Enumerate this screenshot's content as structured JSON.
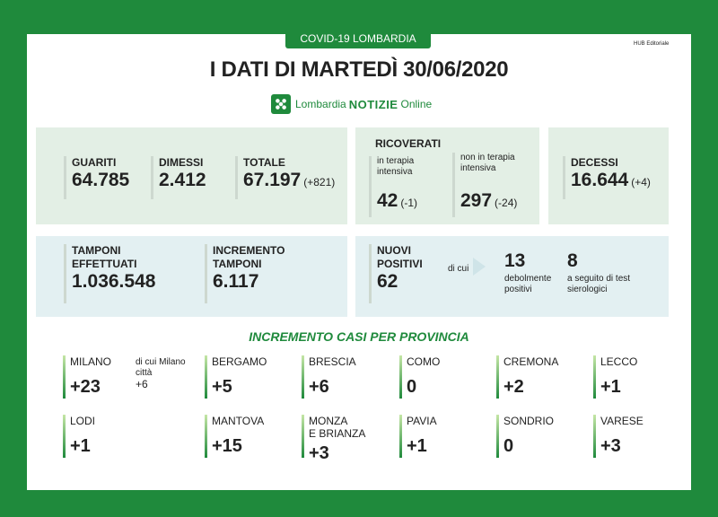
{
  "header": {
    "ribbon": "COVID-19 LOMBARDIA",
    "hub": "HUB Editoriale",
    "title": "I DATI DI MARTEDÌ 30/06/2020",
    "logo": {
      "part1": "Lombardia",
      "part2": "NOTIZIE",
      "part3": "Online",
      "icon": "lombardia-rose-icon"
    }
  },
  "top": {
    "guariti": {
      "label": "GUARITI",
      "value": "64.785"
    },
    "dimessi": {
      "label": "DIMESSI",
      "value": "2.412"
    },
    "totale": {
      "label": "TOTALE",
      "value": "67.197",
      "delta": "(+821)"
    },
    "ricoverati": {
      "label": "RICOVERATI",
      "terapia": {
        "label": "in terapia intensiva",
        "value": "42",
        "delta": "(-1)"
      },
      "non_terapia": {
        "label": "non in terapia intensiva",
        "value": "297",
        "delta": "(-24)"
      }
    },
    "decessi": {
      "label": "DECESSI",
      "value": "16.644",
      "delta": "(+4)"
    }
  },
  "middle": {
    "tamponi": {
      "label_1": "TAMPONI",
      "label_2": "EFFETTUATI",
      "value": "1.036.548"
    },
    "incremento": {
      "label_1": "INCREMENTO",
      "label_2": "TAMPONI",
      "value": "6.117"
    },
    "nuovi": {
      "label_1": "NUOVI",
      "label_2": "POSITIVI",
      "value": "62",
      "di_cui": "di cui"
    },
    "deboli": {
      "value": "13",
      "label": "debolmente positivi"
    },
    "sierologici": {
      "value": "8",
      "label": "a seguito di test sierologici"
    }
  },
  "provinces": {
    "title": "INCREMENTO CASI PER PROVINCIA",
    "milano": {
      "name": "MILANO",
      "value": "+23",
      "sub_label": "di cui Milano città",
      "sub_value": "+6"
    },
    "bergamo": {
      "name": "BERGAMO",
      "value": "+5"
    },
    "brescia": {
      "name": "BRESCIA",
      "value": "+6"
    },
    "como": {
      "name": "COMO",
      "value": "0"
    },
    "cremona": {
      "name": "CREMONA",
      "value": "+2"
    },
    "lecco": {
      "name": "LECCO",
      "value": "+1"
    },
    "lodi": {
      "name": "LODI",
      "value": "+1"
    },
    "mantova": {
      "name": "MANTOVA",
      "value": "+15"
    },
    "monza": {
      "name_1": "MONZA",
      "name_2": "E BRIANZA",
      "value": "+3"
    },
    "pavia": {
      "name": "PAVIA",
      "value": "+1"
    },
    "sondrio": {
      "name": "SONDRIO",
      "value": "0"
    },
    "varese": {
      "name": "VARESE",
      "value": "+3"
    }
  },
  "colors": {
    "brand_green": "#1f8a3c",
    "panel_green": "#e3efe5",
    "panel_blue": "#e3f0f2"
  }
}
